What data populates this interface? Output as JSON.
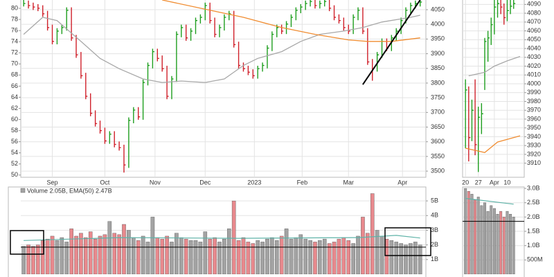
{
  "chart_data": [
    {
      "type": "ohlc",
      "up_color": "#1e9e1e",
      "down_color": "#d0202a",
      "grid": true,
      "xlim": [
        -0.6,
        84.2
      ],
      "ylim": [
        3479,
        4083
      ],
      "y2lim": [
        49.6,
        81.5
      ],
      "yticks": [
        3500,
        3550,
        3600,
        3650,
        3700,
        3750,
        3800,
        3850,
        3900,
        3950,
        4000,
        4050
      ],
      "y2ticks": [
        50,
        52,
        54,
        56,
        58,
        60,
        62,
        64,
        66,
        68,
        70,
        72,
        74,
        76,
        78,
        80
      ],
      "xticks": [
        {
          "value": 6,
          "label": "Sep"
        },
        {
          "value": 17,
          "label": "Oct"
        },
        {
          "value": 27.5,
          "label": "Nov"
        },
        {
          "value": 38,
          "label": "Dec"
        },
        {
          "value": 48.3,
          "label": "2023"
        },
        {
          "value": 58.3,
          "label": "Feb"
        },
        {
          "value": 68,
          "label": "Mar"
        },
        {
          "value": 79.3,
          "label": "Apr"
        }
      ],
      "close": [
        4071,
        4064,
        4059,
        4055,
        4036,
        3989,
        3942,
        3977,
        3989,
        4048,
        3954,
        3896,
        3825,
        3755,
        3697,
        3662,
        3638,
        3603,
        3626,
        3591,
        3580,
        3521,
        3673,
        3708,
        3685,
        3802,
        3860,
        3907,
        3884,
        3849,
        3755,
        3814,
        3966,
        3989,
        3954,
        3977,
        4013,
        4024,
        4064,
        4013,
        3966,
        3989,
        4024,
        4036,
        3931,
        3860,
        3849,
        3837,
        3825,
        3849,
        3860,
        3919,
        3966,
        3989,
        3977,
        4001,
        4024,
        4048,
        4059,
        4071,
        4078,
        4064,
        4071,
        4078,
        4055,
        4024,
        4013,
        3989,
        3977,
        4024,
        4048,
        3977,
        3872,
        3849,
        3896,
        3942,
        3919,
        3954,
        3977,
        4013,
        4048,
        4064,
        4071,
        4076
      ],
      "high": [
        4090,
        4081,
        4074,
        4069,
        4065,
        4046,
        3999,
        3987,
        3999,
        4058,
        4058,
        3964,
        3906,
        3835,
        3765,
        3707,
        3672,
        3648,
        3636,
        3636,
        3601,
        3590,
        3683,
        3718,
        3718,
        3812,
        3870,
        3917,
        3917,
        3894,
        3859,
        3824,
        3976,
        3999,
        3999,
        3987,
        4023,
        4034,
        4074,
        4074,
        4023,
        3999,
        4034,
        4046,
        4046,
        3941,
        3870,
        3859,
        3847,
        3859,
        3870,
        3929,
        3976,
        3999,
        3999,
        4011,
        4034,
        4058,
        4069,
        4081,
        4088,
        4088,
        4081,
        4088,
        4088,
        4065,
        4034,
        4023,
        3999,
        4034,
        4058,
        4058,
        3987,
        3882,
        3906,
        3952,
        3952,
        3964,
        3987,
        4023,
        4058,
        4074,
        4081,
        4086
      ],
      "low": [
        4061,
        4054,
        4049,
        4045,
        4026,
        3979,
        3932,
        3932,
        3967,
        3979,
        3944,
        3886,
        3815,
        3745,
        3687,
        3652,
        3628,
        3593,
        3593,
        3581,
        3570,
        3495,
        3511,
        3663,
        3675,
        3675,
        3792,
        3850,
        3874,
        3839,
        3745,
        3745,
        3804,
        3956,
        3944,
        3944,
        3967,
        4003,
        4014,
        4003,
        3956,
        3956,
        3979,
        4014,
        3921,
        3850,
        3839,
        3827,
        3815,
        3815,
        3839,
        3850,
        3909,
        3956,
        3967,
        3967,
        3991,
        4014,
        4038,
        4049,
        4061,
        4054,
        4054,
        4061,
        4045,
        4014,
        4003,
        3979,
        3967,
        3967,
        4014,
        3967,
        3862,
        3808,
        3839,
        3886,
        3909,
        3909,
        3944,
        3967,
        4003,
        4038,
        4054,
        4061
      ],
      "lines": [
        {
          "color": "#a8a8a8",
          "x": [
            0,
            4,
            7,
            12,
            16,
            20,
            25,
            29,
            33,
            38,
            42,
            46,
            49,
            54,
            58,
            62,
            67,
            71,
            75,
            81,
            83
          ],
          "values": [
            3966,
            4024,
            4013,
            3942,
            3884,
            3849,
            3814,
            3802,
            3807,
            3802,
            3814,
            3860,
            3884,
            3907,
            3942,
            3966,
            3977,
            3989,
            4008,
            4024,
            4031
          ]
        },
        {
          "color": "#f08c30",
          "x": [
            29,
            39,
            46,
            54,
            61,
            68,
            72,
            77,
            83
          ],
          "values": [
            4083,
            4048,
            4024,
            3989,
            3966,
            3947,
            3942,
            3942,
            3954
          ]
        }
      ],
      "trendline": {
        "color": "#000000",
        "x": [
          71,
          83
        ],
        "values": [
          3795,
          4083
        ]
      }
    },
    {
      "type": "ohlc",
      "up_color": "#1e9e1e",
      "down_color": "#d0202a",
      "grid": true,
      "xlim": [
        -0.9,
        18.3
      ],
      "ylim": [
        3894,
        4095
      ],
      "yticks": [
        3910,
        3920,
        3930,
        3940,
        3950,
        3960,
        3970,
        3980,
        3990,
        4000,
        4010,
        4020,
        4030,
        4040,
        4050,
        4060,
        4070,
        4080,
        4090
      ],
      "xticks": [
        {
          "value": 0,
          "label": "20"
        },
        {
          "value": 4,
          "label": "27"
        },
        {
          "value": 9,
          "label": "Apr"
        },
        {
          "value": 13,
          "label": "10"
        }
      ],
      "close": [
        3993,
        3939,
        3970,
        3931,
        3962,
        3966,
        4048,
        4052,
        4067,
        4087,
        4091,
        4087,
        4075,
        4083,
        4088,
        4091
      ],
      "high": [
        4005,
        3997,
        3982,
        4005,
        3974,
        3978,
        4052,
        4060,
        4075,
        4095,
        4099,
        4095,
        4091,
        4095,
        4095,
        4095
      ],
      "low": [
        3927,
        3912,
        3935,
        3919,
        3900,
        3943,
        3993,
        4025,
        4044,
        4056,
        4075,
        4079,
        4067,
        4071,
        4079,
        4085
      ],
      "lines": [
        {
          "color": "#a8a8a8",
          "x": [
            1,
            6,
            9,
            13,
            17
          ],
          "values": [
            4009,
            4013,
            4020,
            4026,
            4031
          ]
        },
        {
          "color": "#f08c30",
          "x": [
            0,
            6,
            10,
            17
          ],
          "values": [
            3927,
            3922,
            3934,
            3941
          ]
        }
      ]
    },
    {
      "type": "volume",
      "title": "Volume 2.05B, EMA(50) 2.47B",
      "up_color": "#a3a3a3",
      "down_color": "#e8898d",
      "xlim": [
        -0.6,
        84.2
      ],
      "ylim": [
        0,
        5.95
      ],
      "reference_line": 1.85,
      "yticks": [
        {
          "value": 1,
          "label": "1B"
        },
        {
          "value": 2,
          "label": "2B"
        },
        {
          "value": 3,
          "label": "3B"
        },
        {
          "value": 4,
          "label": "4B"
        },
        {
          "value": 5,
          "label": "5B"
        }
      ],
      "values": [
        1.9,
        2.0,
        1.9,
        2.0,
        2.3,
        2.4,
        2.6,
        2.3,
        2.5,
        2.2,
        3.1,
        2.6,
        2.8,
        2.5,
        2.9,
        2.4,
        2.6,
        2.7,
        3.6,
        2.8,
        2.7,
        3.4,
        3.0,
        2.5,
        2.3,
        2.6,
        2.2,
        3.9,
        2.5,
        2.4,
        2.6,
        2.2,
        2.8,
        2.5,
        2.4,
        2.3,
        2.3,
        2.2,
        2.9,
        2.4,
        2.5,
        2.2,
        2.4,
        3.1,
        5.0,
        2.3,
        2.5,
        2.2,
        2.1,
        2.3,
        2.2,
        2.4,
        2.5,
        2.3,
        2.6,
        3.1,
        2.4,
        2.5,
        2.7,
        2.4,
        2.3,
        2.2,
        2.3,
        2.4,
        2.1,
        2.2,
        2.4,
        2.5,
        2.3,
        2.1,
        2.6,
        3.9,
        2.8,
        5.5,
        3.0,
        2.6,
        2.4,
        2.3,
        2.2,
        2.1,
        2.0,
        2.1,
        2.2,
        2.0
      ],
      "ema": {
        "color": "#5fb3a8",
        "x": [
          0,
          20,
          45,
          70,
          78,
          83
        ],
        "values": [
          2.3,
          2.5,
          2.45,
          2.5,
          2.65,
          2.47
        ]
      }
    },
    {
      "type": "volume",
      "up_color": "#a3a3a3",
      "down_color": "#e8898d",
      "xlim": [
        -0.9,
        18.3
      ],
      "ylim": [
        0,
        3.05
      ],
      "reference_line": 1.85,
      "yticks": [
        {
          "value": 0.5,
          "label": "500M"
        },
        {
          "value": 1,
          "label": "1.0B"
        },
        {
          "value": 1.5,
          "label": "1.5B"
        },
        {
          "value": 2,
          "label": "2.0B"
        },
        {
          "value": 2.5,
          "label": "2.5B"
        },
        {
          "value": 3,
          "label": "3.0B"
        }
      ],
      "values": [
        3.0,
        2.9,
        2.8,
        2.6,
        2.7,
        2.4,
        2.5,
        2.2,
        2.4,
        2.3,
        2.1,
        2.2,
        2.0,
        2.2,
        2.1,
        2.0
      ],
      "ema": {
        "color": "#5fb3a8",
        "x": [
          0,
          15
        ],
        "values": [
          2.65,
          2.45
        ]
      }
    }
  ]
}
